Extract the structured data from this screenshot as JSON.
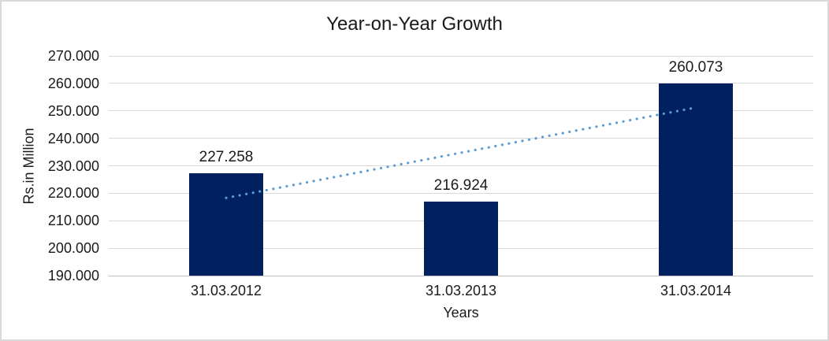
{
  "chart_data": {
    "type": "bar",
    "title": "Year-on-Year Growth",
    "categories": [
      "31.03.2012",
      "31.03.2013",
      "31.03.2014"
    ],
    "values": [
      227.258,
      216.924,
      260.073
    ],
    "value_labels": [
      "227.258",
      "216.924",
      "260.073"
    ],
    "xlabel": "Years",
    "ylabel": "Rs.in Million",
    "ylim": [
      190.0,
      270.0
    ],
    "ytick_labels": [
      "270.000",
      "260.000",
      "250.000",
      "240.000",
      "230.000",
      "220.000",
      "210.000",
      "200.000",
      "190.000"
    ],
    "grid": true,
    "legend_position": "none",
    "colors": {
      "bar": "#002060",
      "trendline": "#5b9bd5",
      "gridline": "#d9d9d9",
      "axis_line": "#bfbfbf",
      "text": "#1a1a1a",
      "chart_border": "#d9d9d9",
      "background": "#ffffff"
    },
    "trendline": {
      "type": "linear",
      "style": "dotted",
      "start_value": 218.3,
      "end_value": 251.2
    }
  }
}
